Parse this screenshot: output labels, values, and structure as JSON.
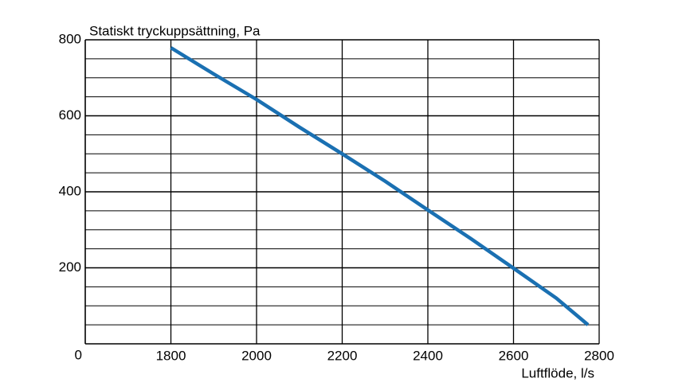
{
  "chart_data": {
    "type": "line",
    "ylabel": "Statiskt tryckuppsättning, Pa",
    "xlabel": "Luftflöde, l/s",
    "x": [
      1800,
      1900,
      2000,
      2100,
      2200,
      2300,
      2400,
      2500,
      2600,
      2700,
      2774
    ],
    "series": [
      {
        "color": "#1a70b2",
        "values": [
          779,
          710,
          643,
          570,
          500,
          428,
          352,
          277,
          199,
          120,
          50
        ]
      }
    ],
    "xlim": [
      1600,
      2800
    ],
    "xticks": [
      1800,
      2000,
      2200,
      2400,
      2600,
      2800
    ],
    "ylim": [
      0,
      800
    ],
    "yticks": [
      0,
      200,
      400,
      600,
      800
    ],
    "minor_yticks": [
      50,
      100,
      150,
      250,
      300,
      350,
      450,
      500,
      550,
      650,
      700,
      750
    ],
    "grid": true
  }
}
